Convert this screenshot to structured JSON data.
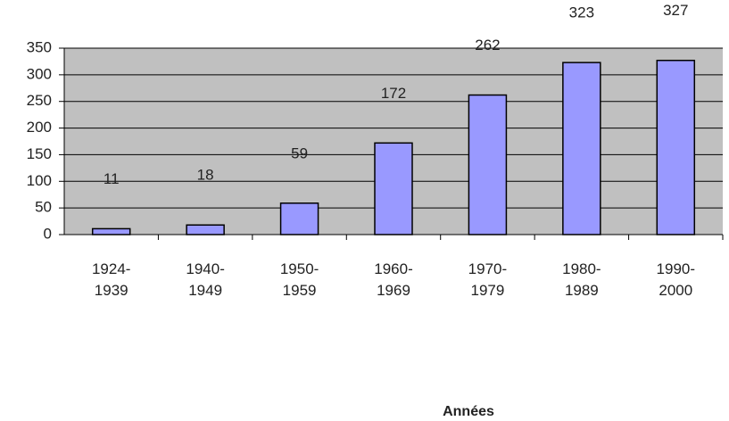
{
  "chart_data": {
    "type": "bar",
    "x_label": "Années",
    "categories": [
      "1924-1939",
      "1940-1949",
      "1950-1959",
      "1960-1969",
      "1970-1979",
      "1980-1989",
      "1990-2000"
    ],
    "values": [
      11,
      18,
      59,
      172,
      262,
      323,
      327
    ],
    "color": "#9999ff",
    "ylim": [
      0,
      350
    ],
    "yticks": [
      0,
      50,
      100,
      150,
      200,
      250,
      300,
      350
    ],
    "grid": true
  }
}
